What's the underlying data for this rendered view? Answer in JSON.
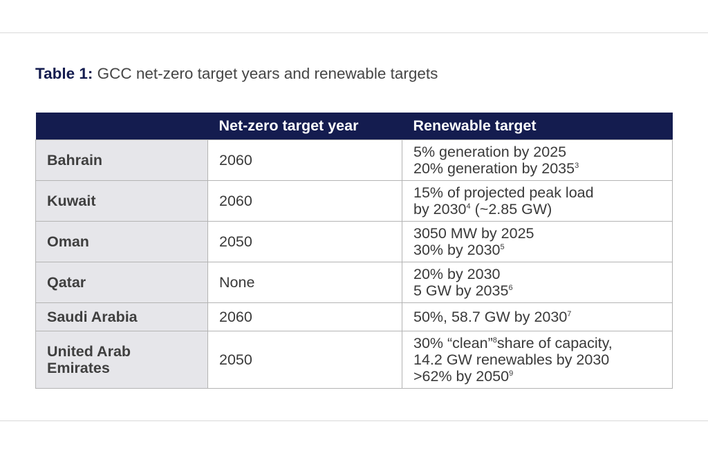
{
  "caption": {
    "label": "Table 1:",
    "text": "GCC net-zero target years and renewable targets"
  },
  "table": {
    "headers": [
      "",
      "Net-zero target year",
      "Renewable target"
    ],
    "rows": [
      {
        "country_lines": [
          "Bahrain"
        ],
        "net_zero_year": "2060",
        "renewable_lines": [
          {
            "text": "5% generation by 2025",
            "sup": "",
            "tail": ""
          },
          {
            "text": "20% generation by 2035",
            "sup": "3",
            "tail": ""
          }
        ]
      },
      {
        "country_lines": [
          "Kuwait"
        ],
        "net_zero_year": "2060",
        "renewable_lines": [
          {
            "text": "15% of projected peak load",
            "sup": "",
            "tail": ""
          },
          {
            "text": "by 2030",
            "sup": "4",
            "tail": " (~2.85 GW)"
          }
        ]
      },
      {
        "country_lines": [
          "Oman"
        ],
        "net_zero_year": "2050",
        "renewable_lines": [
          {
            "text": "3050 MW by 2025",
            "sup": "",
            "tail": ""
          },
          {
            "text": "30% by 2030",
            "sup": "5",
            "tail": ""
          }
        ]
      },
      {
        "country_lines": [
          "Qatar"
        ],
        "net_zero_year": "None",
        "renewable_lines": [
          {
            "text": "20% by 2030",
            "sup": "",
            "tail": ""
          },
          {
            "text": "5 GW by 2035",
            "sup": "6",
            "tail": ""
          }
        ]
      },
      {
        "country_lines": [
          "Saudi Arabia"
        ],
        "net_zero_year": "2060",
        "renewable_lines": [
          {
            "text": "50%, 58.7 GW by 2030",
            "sup": "7",
            "tail": ""
          }
        ]
      },
      {
        "country_lines": [
          "United Arab",
          "Emirates"
        ],
        "net_zero_year": "2050",
        "renewable_lines": [
          {
            "text": "30% “clean”",
            "sup": "8",
            "tail": "share of capacity,"
          },
          {
            "text": "14.2 GW renewables by 2030",
            "sup": "",
            "tail": ""
          },
          {
            "text": ">62% by 2050",
            "sup": "9",
            "tail": ""
          }
        ]
      }
    ]
  },
  "colors": {
    "header_bg": "#141c4f",
    "country_cell_bg": "#e6e6ea",
    "border": "#b3b3b3"
  }
}
